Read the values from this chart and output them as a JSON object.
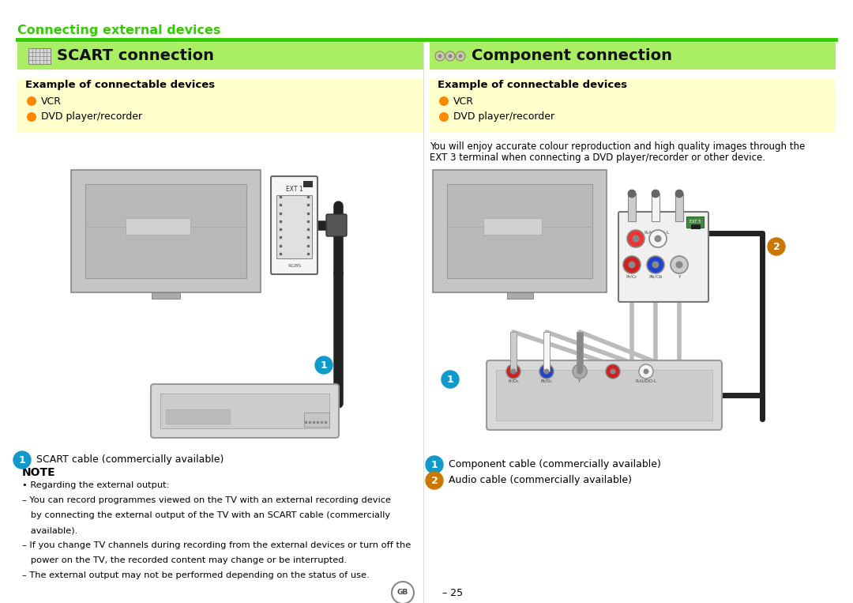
{
  "page_bg": "#ffffff",
  "header_text": "Connecting external devices",
  "header_color": "#33cc00",
  "header_line_color": "#33cc00",
  "section_bg": "#aaee66",
  "example_box_bg": "#ffffcc",
  "left_section_title": "SCART connection",
  "right_section_title": "Component connection",
  "example_title": "Example of connectable devices",
  "bullet_color": "#ff8800",
  "items": [
    "VCR",
    "DVD player/recorder"
  ],
  "scart_note_title": "NOTE",
  "scart_caption": "SCART cable (commercially available)",
  "component_caption1": "Component cable (commercially available)",
  "component_caption2": "Audio cable (commercially available)",
  "component_desc1": "You will enjoy accurate colour reproduction and high quality images through the",
  "component_desc2": "EXT 3 terminal when connecting a DVD player/recorder or other device.",
  "page_number": "GB - 25",
  "text_color": "#000000",
  "note_line1": "• Regarding the external output:",
  "note_line2": "– You can record programmes viewed on the TV with an external recording device",
  "note_line3": "   by connecting the external output of the TV with an SCART cable (commercially",
  "note_line4": "   available).",
  "note_line5": "– If you change TV channels during recording from the external devices or turn off the",
  "note_line6": "   power on the TV, the recorded content may change or be interrupted.",
  "note_line7": "– The external output may not be performed depending on the status of use.",
  "tv_frame_color": "#b0b0b0",
  "tv_inner_color": "#c8c8c8",
  "tv_dark": "#888888",
  "cable_dark": "#333333",
  "device_color": "#d0d0d0",
  "label1_color": "#00aacc",
  "label2_color": "#cc7700"
}
